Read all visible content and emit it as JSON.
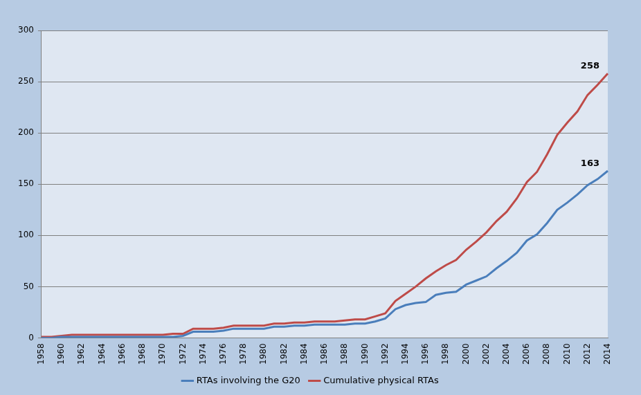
{
  "chart_data": {
    "type": "line",
    "categories": [
      "1958",
      null,
      "1960",
      null,
      "1962",
      null,
      "1964",
      null,
      "1966",
      null,
      "1968",
      null,
      "1970",
      null,
      "1972",
      null,
      "1974",
      null,
      "1976",
      null,
      "1978",
      null,
      "1980",
      null,
      "1982",
      null,
      "1984",
      null,
      "1986",
      null,
      "1988",
      null,
      "1990",
      null,
      "1992",
      null,
      "1994",
      null,
      "1996",
      null,
      "1998",
      null,
      "2000",
      null,
      "2002",
      null,
      "2004",
      null,
      "2006",
      null,
      "2008",
      null,
      "2010",
      null,
      "2012",
      null,
      "2014"
    ],
    "series": [
      {
        "name": "RTAs involving the G20",
        "color": "#4a7ebb",
        "values": [
          0,
          0,
          1,
          1,
          1,
          1,
          1,
          1,
          1,
          1,
          1,
          1,
          1,
          1,
          2,
          6,
          6,
          6,
          7,
          9,
          9,
          9,
          9,
          11,
          11,
          12,
          12,
          13,
          13,
          13,
          13,
          14,
          14,
          16,
          19,
          28,
          32,
          34,
          35,
          42,
          44,
          45,
          52,
          56,
          60,
          68,
          75,
          83,
          95,
          101,
          112,
          125,
          132,
          140,
          149,
          155,
          163
        ]
      },
      {
        "name": "Cumulative physical RTAs",
        "color": "#be4b48",
        "values": [
          1,
          1,
          2,
          3,
          3,
          3,
          3,
          3,
          3,
          3,
          3,
          3,
          3,
          4,
          4,
          9,
          9,
          9,
          10,
          12,
          12,
          12,
          12,
          14,
          14,
          15,
          15,
          16,
          16,
          16,
          17,
          18,
          18,
          21,
          24,
          36,
          43,
          50,
          58,
          65,
          71,
          76,
          86,
          94,
          103,
          114,
          123,
          136,
          152,
          162,
          179,
          198,
          210,
          221,
          237,
          247,
          258
        ]
      }
    ],
    "ylim": [
      0,
      300
    ],
    "yticks": [
      0,
      50,
      100,
      150,
      200,
      250,
      300
    ],
    "grid": true,
    "legend": "bottom",
    "annotations": [
      {
        "text": "258",
        "x": "2014",
        "y": 258
      },
      {
        "text": "163",
        "x": "2014",
        "y": 163
      }
    ]
  }
}
